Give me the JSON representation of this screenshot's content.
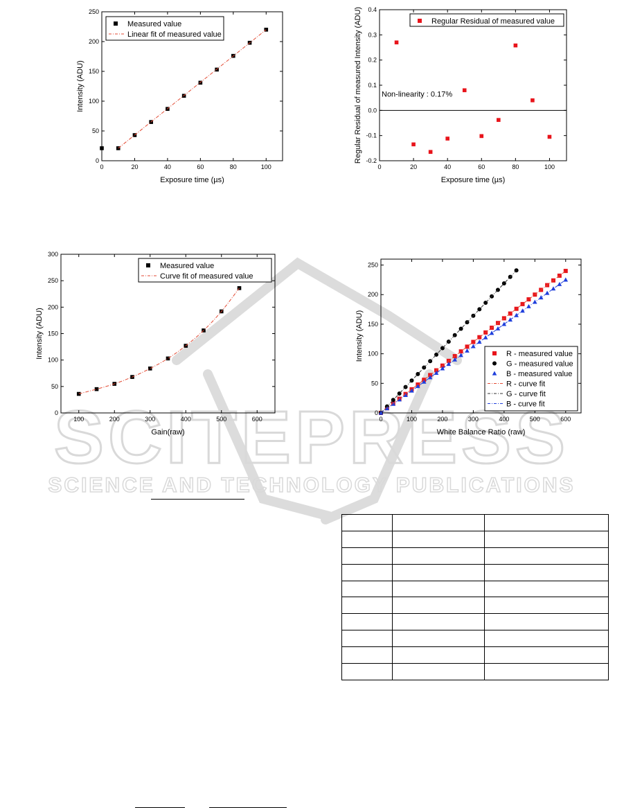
{
  "chart_data": [
    {
      "id": "exposure",
      "type": "scatter",
      "title": "",
      "xlabel": "Exposure time (µs)",
      "ylabel": "Intensity (ADU)",
      "xlim": [
        0,
        110
      ],
      "ylim": [
        0,
        250
      ],
      "xticks": [
        0,
        20,
        40,
        60,
        80,
        100
      ],
      "yticks": [
        0,
        50,
        100,
        150,
        200,
        250
      ],
      "legend_placement": "top-left",
      "grid": false,
      "series": [
        {
          "name": "Measured value",
          "kind": "points",
          "marker": "square",
          "color": "#000000",
          "x": [
            0,
            10,
            20,
            30,
            40,
            50,
            60,
            70,
            80,
            90,
            100
          ],
          "y": [
            21,
            21,
            43,
            65,
            87,
            109,
            131,
            153,
            176,
            198,
            220
          ]
        },
        {
          "name": "Linear fit of measured value",
          "kind": "line",
          "dash": "dashdot",
          "color": "#e34a33",
          "x": [
            10,
            100
          ],
          "y": [
            21,
            220
          ]
        }
      ]
    },
    {
      "id": "residual",
      "type": "scatter",
      "title": "",
      "xlabel": "Exposure time (µs)",
      "ylabel": "Regular Residual of measured Intensity (ADU)",
      "xlim": [
        0,
        110
      ],
      "ylim": [
        -0.2,
        0.4
      ],
      "xticks": [
        0,
        20,
        40,
        60,
        80,
        100
      ],
      "yticks": [
        -0.2,
        -0.1,
        0.0,
        0.1,
        0.2,
        0.3,
        0.4
      ],
      "ytick_labels": [
        "-0.2",
        "-0.1",
        "0.0",
        "0.1",
        "0.2",
        "0.3",
        "0.4"
      ],
      "legend_placement": "top-right",
      "grid": false,
      "zero_line": true,
      "annotation": "Non-linearity : 0.17%",
      "series": [
        {
          "name": "Regular Residual of measured value",
          "kind": "points",
          "marker": "square",
          "color": "#e8141b",
          "x": [
            10,
            20,
            30,
            40,
            50,
            60,
            70,
            80,
            90,
            100
          ],
          "y": [
            0.27,
            -0.135,
            -0.165,
            -0.112,
            0.08,
            -0.102,
            -0.038,
            0.258,
            0.04,
            -0.105
          ]
        }
      ]
    },
    {
      "id": "gain",
      "type": "scatter",
      "title": "",
      "xlabel": "Gain(raw)",
      "ylabel": "Intensity (ADU)",
      "xlim": [
        50,
        650
      ],
      "ylim": [
        0,
        300
      ],
      "xticks": [
        100,
        200,
        300,
        400,
        500,
        600
      ],
      "yticks": [
        0,
        50,
        100,
        150,
        200,
        250,
        300
      ],
      "legend_placement": "top-right",
      "grid": false,
      "series": [
        {
          "name": "Measured value",
          "kind": "points",
          "marker": "square",
          "color": "#000000",
          "x": [
            100,
            150,
            200,
            250,
            300,
            350,
            400,
            450,
            500,
            550
          ],
          "y": [
            36,
            45,
            55,
            68,
            84,
            103,
            127,
            156,
            192,
            236
          ]
        },
        {
          "name": "Curve fit of measured value",
          "kind": "curve",
          "dash": "dashdot",
          "color": "#e34a33",
          "x": [
            100,
            150,
            200,
            250,
            300,
            350,
            400,
            450,
            500,
            550
          ],
          "y": [
            36,
            45,
            55,
            68,
            84,
            103,
            127,
            156,
            192,
            236
          ]
        }
      ]
    },
    {
      "id": "whitebalance",
      "type": "scatter",
      "title": "",
      "xlabel": "White Balance Ratio (raw)",
      "ylabel": "Intensity (ADU)",
      "xlim": [
        0,
        650
      ],
      "ylim": [
        0,
        260
      ],
      "xticks": [
        0,
        100,
        200,
        300,
        400,
        500,
        600
      ],
      "yticks": [
        0,
        50,
        100,
        150,
        200,
        250
      ],
      "legend_placement": "bottom-right",
      "grid": false,
      "series": [
        {
          "name": "R - measured value",
          "kind": "points",
          "marker": "square",
          "color": "#e8141b",
          "slope": 0.4,
          "x_from": 0,
          "x_to": 600,
          "x_step": 20
        },
        {
          "name": "G - measured value",
          "kind": "points",
          "marker": "circle",
          "color": "#000000",
          "slope": 0.5475,
          "x_from": 0,
          "x_to": 440,
          "x_step": 20
        },
        {
          "name": "B - measured value",
          "kind": "points",
          "marker": "triangle",
          "color": "#1f3fdc",
          "slope": 0.375,
          "x_from": 0,
          "x_to": 600,
          "x_step": 20
        },
        {
          "name": "R - curve fit",
          "kind": "line",
          "dash": "dashdot",
          "color": "#e34a33",
          "slope": 0.4,
          "x_from": 0,
          "x_to": 600
        },
        {
          "name": "G - curve fit",
          "kind": "line",
          "dash": "dashdot",
          "color": "#333333",
          "slope": 0.5475,
          "x_from": 0,
          "x_to": 440
        },
        {
          "name": "B - curve fit",
          "kind": "line",
          "dash": "dashdot",
          "color": "#1f3fdc",
          "slope": 0.375,
          "x_from": 0,
          "x_to": 600
        }
      ]
    }
  ],
  "watermark": {
    "main": "SCITEPRESS",
    "sub": "SCIENCE AND TECHNOLOGY PUBLICATIONS",
    "color": "#d9d9d9"
  },
  "table": {
    "rows": 10,
    "columns": 3,
    "cells": []
  }
}
